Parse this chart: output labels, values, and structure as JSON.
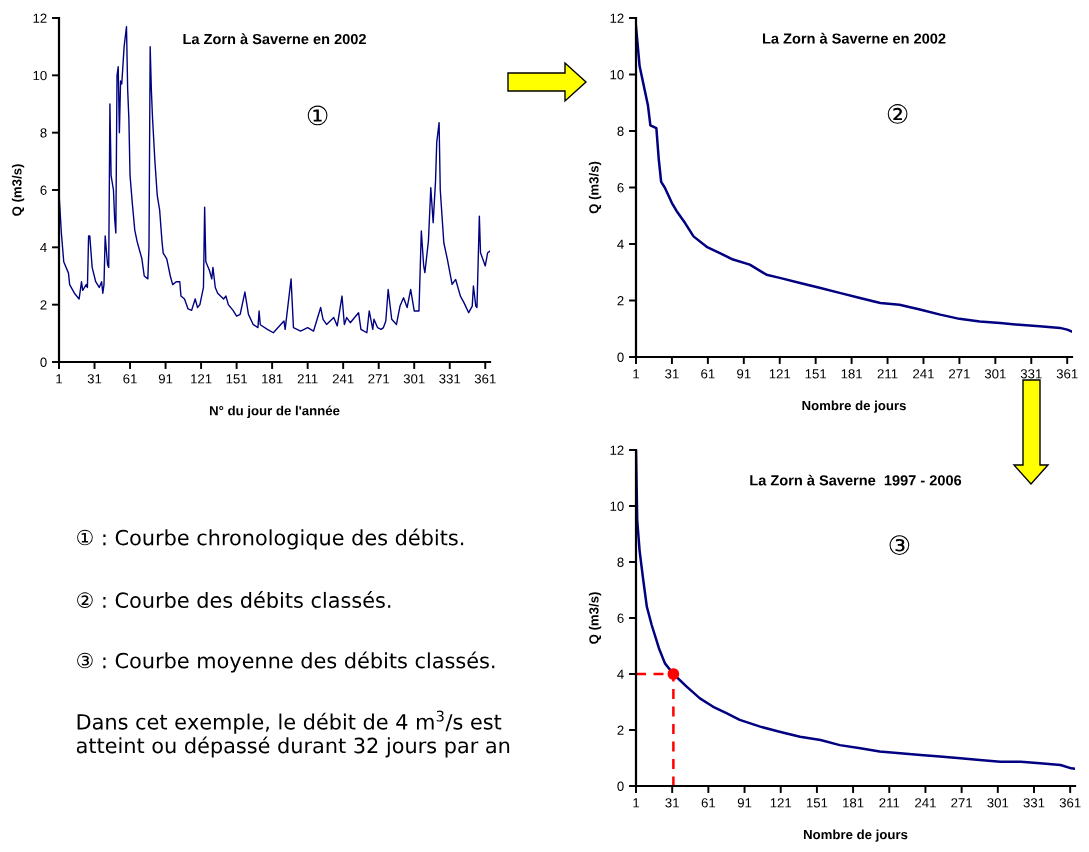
{
  "chart_data": [
    {
      "type": "line",
      "title": "La Zorn à Saverne en 2002",
      "xlabel": "N° du jour de l'année",
      "ylabel": "Q (m3/s)",
      "xlim": [
        1,
        365
      ],
      "ylim": [
        0,
        12
      ],
      "xticks": [
        1,
        31,
        61,
        91,
        121,
        151,
        181,
        211,
        241,
        271,
        301,
        331,
        361
      ],
      "yticks": [
        0,
        2,
        4,
        6,
        8,
        10,
        12
      ],
      "annotations": [
        "①"
      ],
      "series": [
        {
          "color": "#000080",
          "x": [
            1,
            3,
            5,
            9,
            10,
            14,
            18,
            20,
            21,
            24,
            25,
            26,
            27,
            29,
            32,
            35,
            37,
            38,
            39,
            40,
            42,
            43,
            44,
            45,
            47,
            48,
            49,
            50,
            51,
            52,
            53,
            54,
            56,
            58,
            59,
            60,
            61,
            63,
            65,
            67,
            69,
            71,
            73,
            76,
            77,
            78,
            79,
            80,
            82,
            84,
            86,
            88,
            89,
            92,
            95,
            97,
            100,
            103,
            104,
            107,
            110,
            113,
            116,
            118,
            120,
            123,
            124,
            125,
            128,
            130,
            131,
            133,
            135,
            140,
            142,
            144,
            148,
            151,
            154,
            158,
            161,
            165,
            169,
            170,
            171,
            177,
            182,
            191,
            192,
            197,
            199,
            205,
            211,
            216,
            222,
            224,
            227,
            233,
            236,
            240,
            242,
            244,
            247,
            254,
            256,
            261,
            263,
            266,
            267,
            270,
            273,
            275,
            277,
            279,
            282,
            286,
            289,
            292,
            295,
            298,
            301,
            305,
            307,
            309,
            310,
            313,
            315,
            317,
            319,
            320,
            322,
            323,
            326,
            329,
            333,
            336,
            340,
            343,
            347,
            350,
            351,
            353,
            354,
            356,
            357,
            361,
            363,
            365
          ],
          "values": [
            5.9,
            4.5,
            3.5,
            3.1,
            2.7,
            2.4,
            2.2,
            2.8,
            2.5,
            2.7,
            2.6,
            4.4,
            4.4,
            3.3,
            2.8,
            2.6,
            2.8,
            2.4,
            2.7,
            4.4,
            3.4,
            3.3,
            9.0,
            6.5,
            6.0,
            5.0,
            4.5,
            10.0,
            10.3,
            8.0,
            9.8,
            9.7,
            11.0,
            11.7,
            9.5,
            8.5,
            6.5,
            5.5,
            4.6,
            4.2,
            3.9,
            3.6,
            3.0,
            2.9,
            4.0,
            11.0,
            9.5,
            8.5,
            7.0,
            5.8,
            5.3,
            4.2,
            3.8,
            3.6,
            3.0,
            2.7,
            2.8,
            2.8,
            2.3,
            2.2,
            1.85,
            1.8,
            2.2,
            1.9,
            2.0,
            2.6,
            5.4,
            3.5,
            3.2,
            2.9,
            3.3,
            2.6,
            2.4,
            2.2,
            2.3,
            2.0,
            1.8,
            1.6,
            1.66,
            2.44,
            1.66,
            1.31,
            1.2,
            1.78,
            1.3,
            1.14,
            1.02,
            1.43,
            1.14,
            2.9,
            1.2,
            1.08,
            1.2,
            1.08,
            1.9,
            1.49,
            1.31,
            1.55,
            1.26,
            2.3,
            1.31,
            1.55,
            1.37,
            1.72,
            1.14,
            1.02,
            1.78,
            1.14,
            1.49,
            1.2,
            1.14,
            1.2,
            1.43,
            2.53,
            1.49,
            1.31,
            1.95,
            2.24,
            1.9,
            2.53,
            1.78,
            1.78,
            4.57,
            3.35,
            3.12,
            4.22,
            6.08,
            4.86,
            6.31,
            7.65,
            8.35,
            6.0,
            4.16,
            3.58,
            2.71,
            2.88,
            2.3,
            2.07,
            1.72,
            1.95,
            2.65,
            1.95,
            1.9,
            5.09,
            3.81,
            3.35,
            3.81,
            3.87
          ]
        }
      ]
    },
    {
      "type": "line",
      "title": "La Zorn à Saverne en 2002",
      "xlabel": "Nombre de jours",
      "ylabel": "Q (m3/s)",
      "xlim": [
        1,
        365
      ],
      "ylim": [
        0,
        12
      ],
      "xticks": [
        1,
        31,
        61,
        91,
        121,
        151,
        181,
        211,
        241,
        271,
        301,
        331,
        361
      ],
      "yticks": [
        0,
        2,
        4,
        6,
        8,
        10,
        12
      ],
      "annotations": [
        "②"
      ],
      "series": [
        {
          "color": "#000080",
          "x": [
            1,
            4,
            7,
            11,
            13,
            18,
            20,
            22,
            25,
            31,
            35,
            42,
            49,
            60,
            71,
            82,
            96,
            110,
            121,
            138,
            155,
            171,
            188,
            205,
            221,
            238,
            255,
            271,
            288,
            305,
            321,
            338,
            355,
            361,
            365
          ],
          "values": [
            11.7,
            10.3,
            9.7,
            8.9,
            8.2,
            8.1,
            7.0,
            6.2,
            6.0,
            5.45,
            5.16,
            4.74,
            4.27,
            3.9,
            3.68,
            3.45,
            3.27,
            2.91,
            2.8,
            2.62,
            2.44,
            2.27,
            2.09,
            1.91,
            1.85,
            1.68,
            1.5,
            1.35,
            1.26,
            1.2,
            1.14,
            1.09,
            1.03,
            0.97,
            0.9
          ]
        }
      ]
    },
    {
      "type": "line",
      "title": "La Zorn à Saverne  1997 - 2006",
      "xlabel": "Nombre de jours",
      "ylabel": "Q (m3/s)",
      "xlim": [
        1,
        365
      ],
      "ylim": [
        0,
        12
      ],
      "xticks": [
        1,
        31,
        61,
        91,
        121,
        151,
        181,
        211,
        241,
        271,
        301,
        331,
        361
      ],
      "yticks": [
        0,
        2,
        4,
        6,
        8,
        10,
        12
      ],
      "annotations": [
        "③"
      ],
      "series": [
        {
          "color": "#000080",
          "x": [
            1,
            2,
            4,
            7,
            10,
            14,
            20,
            25,
            32,
            43,
            54,
            65,
            76,
            87,
            104,
            120,
            137,
            154,
            170,
            187,
            203,
            220,
            237,
            253,
            270,
            286,
            303,
            320,
            336,
            353,
            362,
            365
          ],
          "values": [
            12.0,
            9.5,
            8.4,
            7.36,
            6.4,
            5.75,
            4.92,
            4.38,
            4.0,
            3.55,
            3.13,
            2.83,
            2.6,
            2.36,
            2.12,
            1.94,
            1.76,
            1.64,
            1.46,
            1.35,
            1.23,
            1.17,
            1.11,
            1.05,
            0.99,
            0.93,
            0.87,
            0.87,
            0.81,
            0.75,
            0.63,
            0.62
          ]
        },
        {
          "type": "line",
          "color": "#ff0000",
          "line_style": "dashed",
          "x": [
            1,
            32,
            32
          ],
          "values": [
            4,
            4,
            0
          ]
        },
        {
          "type": "scatter",
          "color": "#ff0000",
          "marker": "circle",
          "x": [
            32
          ],
          "values": [
            4
          ]
        }
      ]
    },
    {
      "type": "other",
      "annotations": [
        "① : Courbe chronologique des débits.",
        "② : Courbe des débits classés.",
        "③ : Courbe moyenne des débits classés.",
        "Dans cet exemple, le débit de 4 m$^{3}$/s est\natteint ou dépassé durant 32 jours par an"
      ]
    }
  ]
}
